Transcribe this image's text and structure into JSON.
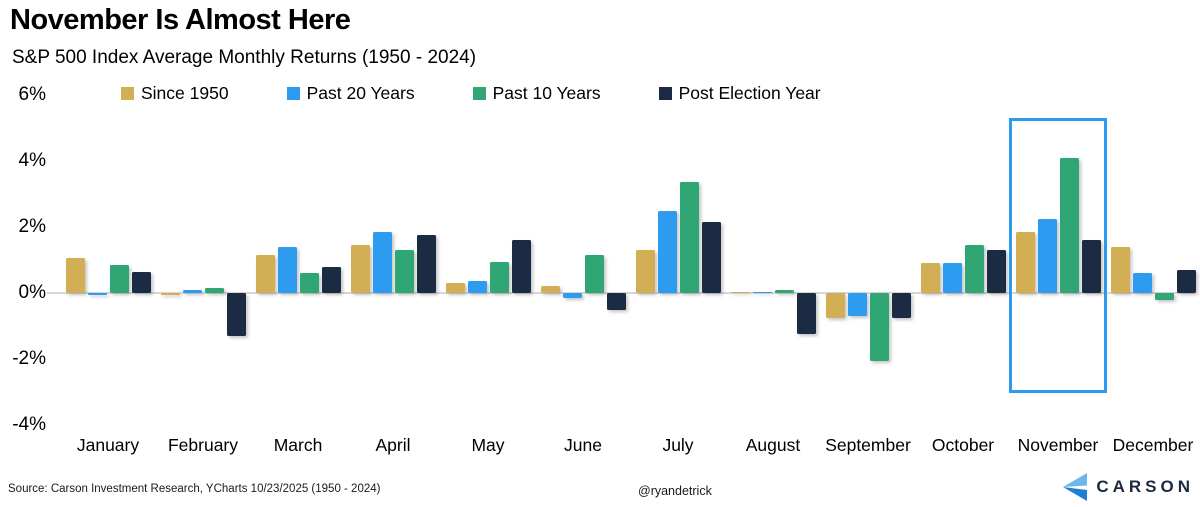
{
  "header": {
    "title": "November Is Almost Here",
    "subtitle": "S&P 500 Index Average Monthly Returns (1950 - 2024)"
  },
  "chart_data": {
    "type": "bar",
    "title": "November Is Almost Here",
    "subtitle": "S&P 500 Index Average Monthly Returns (1950 - 2024)",
    "categories": [
      "January",
      "February",
      "March",
      "April",
      "May",
      "June",
      "July",
      "August",
      "September",
      "October",
      "November",
      "December"
    ],
    "series": [
      {
        "name": "Since 1950",
        "color": "#D2AF55",
        "values": [
          1.05,
          -0.05,
          1.15,
          1.45,
          0.3,
          0.2,
          1.3,
          0.0,
          -0.75,
          0.9,
          1.85,
          1.4
        ]
      },
      {
        "name": "Past 20 Years",
        "color": "#2D9BF0",
        "values": [
          -0.05,
          0.1,
          1.4,
          1.85,
          0.35,
          -0.15,
          2.5,
          0.0,
          -0.7,
          0.9,
          2.25,
          0.6
        ]
      },
      {
        "name": "Past 10 Years",
        "color": "#2FA673",
        "values": [
          0.85,
          0.15,
          0.6,
          1.3,
          0.95,
          1.15,
          3.35,
          0.1,
          -2.05,
          1.45,
          4.1,
          -0.2
        ]
      },
      {
        "name": "Post Election Year",
        "color": "#1C2B44",
        "values": [
          0.65,
          -1.3,
          0.8,
          1.75,
          1.6,
          -0.5,
          2.15,
          -1.25,
          -0.75,
          1.3,
          1.6,
          0.7
        ]
      }
    ],
    "ylabel": "",
    "xlabel": "",
    "ylim": [
      -4,
      6
    ],
    "ytick_values": [
      6,
      4,
      2,
      0,
      -2,
      -4
    ],
    "ytick_labels": [
      "6%",
      "4%",
      "2%",
      "0%",
      "-2%",
      "-4%"
    ],
    "grid": false,
    "legend_position": "top",
    "highlight": {
      "month": "November",
      "color": "#2D9BF0"
    }
  },
  "footer": {
    "source": "Source: Carson Investment Research, YCharts 10/23/2025 (1950 - 2024)",
    "handle": "@ryandetrick",
    "brand": "CARSON"
  },
  "colors": {
    "axis_line": "#d7d7d7",
    "logo_light_blue": "#6fb6e9",
    "logo_dark_blue": "#1f7fd4",
    "logo_text": "#1b2b3f"
  }
}
